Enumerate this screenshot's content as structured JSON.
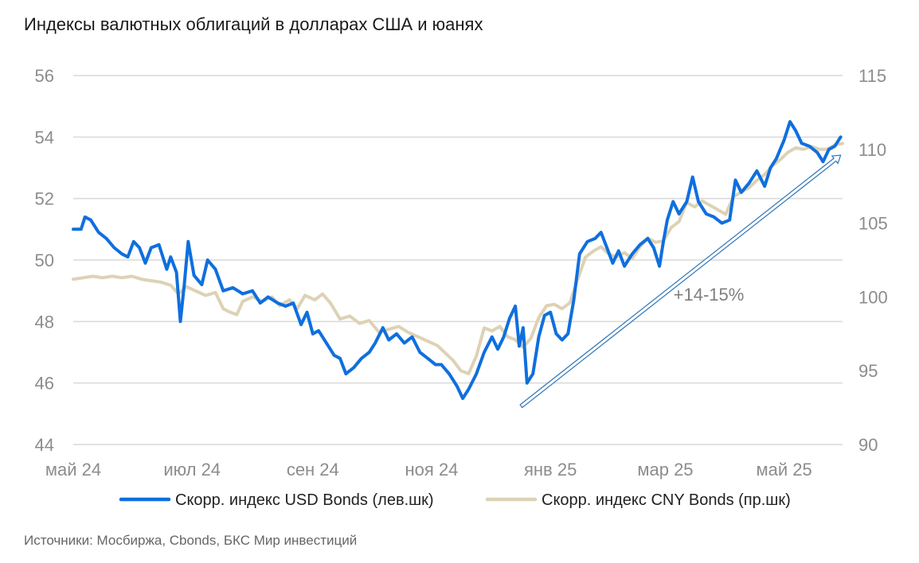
{
  "title": "Индексы валютных облигаций в долларах США и юанях",
  "source": "Источники: Мосбиржа, Cbonds, БКС Мир инвестиций",
  "chart_data": {
    "type": "line",
    "title": "Индексы валютных облигаций в долларах США и юанях",
    "x_tick_labels": [
      "май 24",
      "июл 24",
      "сен 24",
      "ноя 24",
      "янв 25",
      "мар 25",
      "май 25"
    ],
    "x_tick_dates": [
      "2024-05-01",
      "2024-07-01",
      "2024-09-01",
      "2024-11-01",
      "2025-01-01",
      "2025-03-01",
      "2025-05-01"
    ],
    "x_range": [
      "2024-05-01",
      "2025-05-31"
    ],
    "y_left": {
      "range": [
        44,
        56
      ],
      "ticks": [
        44,
        46,
        48,
        50,
        52,
        54
      ],
      "top_tick": 56
    },
    "y_right": {
      "range": [
        90,
        115
      ],
      "ticks": [
        90,
        95,
        100,
        105,
        110,
        115
      ]
    },
    "grid": true,
    "legend_position": "bottom",
    "annotation": {
      "text": "+14-15%",
      "arrow_from": [
        "2024-12-17",
        92.6
      ],
      "arrow_to": [
        "2025-05-30",
        109.6
      ],
      "axis": "right"
    },
    "series": [
      {
        "name": "Скорр. индекс USD Bonds (лев.шк)",
        "axis": "left",
        "color": "#0f6fde",
        "points": [
          [
            "2024-05-01",
            51.0
          ],
          [
            "2024-05-05",
            51.0
          ],
          [
            "2024-05-07",
            51.4
          ],
          [
            "2024-05-10",
            51.3
          ],
          [
            "2024-05-14",
            50.9
          ],
          [
            "2024-05-18",
            50.7
          ],
          [
            "2024-05-22",
            50.4
          ],
          [
            "2024-05-26",
            50.2
          ],
          [
            "2024-05-29",
            50.1
          ],
          [
            "2024-06-01",
            50.6
          ],
          [
            "2024-06-04",
            50.4
          ],
          [
            "2024-06-07",
            49.9
          ],
          [
            "2024-06-10",
            50.4
          ],
          [
            "2024-06-14",
            50.5
          ],
          [
            "2024-06-18",
            49.7
          ],
          [
            "2024-06-20",
            50.1
          ],
          [
            "2024-06-23",
            49.6
          ],
          [
            "2024-06-25",
            48.0
          ],
          [
            "2024-06-27",
            49.2
          ],
          [
            "2024-06-29",
            50.6
          ],
          [
            "2024-07-02",
            49.5
          ],
          [
            "2024-07-06",
            49.2
          ],
          [
            "2024-07-09",
            50.0
          ],
          [
            "2024-07-13",
            49.7
          ],
          [
            "2024-07-17",
            49.0
          ],
          [
            "2024-07-22",
            49.1
          ],
          [
            "2024-07-27",
            48.9
          ],
          [
            "2024-08-01",
            49.0
          ],
          [
            "2024-08-05",
            48.6
          ],
          [
            "2024-08-09",
            48.8
          ],
          [
            "2024-08-14",
            48.6
          ],
          [
            "2024-08-18",
            48.5
          ],
          [
            "2024-08-22",
            48.6
          ],
          [
            "2024-08-26",
            47.9
          ],
          [
            "2024-08-29",
            48.3
          ],
          [
            "2024-09-01",
            47.6
          ],
          [
            "2024-09-04",
            47.7
          ],
          [
            "2024-09-08",
            47.3
          ],
          [
            "2024-09-12",
            46.9
          ],
          [
            "2024-09-15",
            46.8
          ],
          [
            "2024-09-18",
            46.3
          ],
          [
            "2024-09-22",
            46.5
          ],
          [
            "2024-09-26",
            46.8
          ],
          [
            "2024-09-30",
            47.0
          ],
          [
            "2024-10-03",
            47.3
          ],
          [
            "2024-10-07",
            47.8
          ],
          [
            "2024-10-10",
            47.4
          ],
          [
            "2024-10-14",
            47.6
          ],
          [
            "2024-10-18",
            47.3
          ],
          [
            "2024-10-22",
            47.5
          ],
          [
            "2024-10-26",
            47.0
          ],
          [
            "2024-10-30",
            46.8
          ],
          [
            "2024-11-03",
            46.6
          ],
          [
            "2024-11-06",
            46.6
          ],
          [
            "2024-11-10",
            46.3
          ],
          [
            "2024-11-14",
            45.9
          ],
          [
            "2024-11-17",
            45.5
          ],
          [
            "2024-11-20",
            45.8
          ],
          [
            "2024-11-24",
            46.3
          ],
          [
            "2024-11-28",
            47.0
          ],
          [
            "2024-12-02",
            47.5
          ],
          [
            "2024-12-05",
            47.1
          ],
          [
            "2024-12-08",
            47.5
          ],
          [
            "2024-12-11",
            48.1
          ],
          [
            "2024-12-14",
            48.5
          ],
          [
            "2024-12-16",
            47.2
          ],
          [
            "2024-12-18",
            47.8
          ],
          [
            "2024-12-20",
            46.0
          ],
          [
            "2024-12-23",
            46.3
          ],
          [
            "2024-12-26",
            47.5
          ],
          [
            "2024-12-29",
            48.2
          ],
          [
            "2025-01-01",
            48.3
          ],
          [
            "2025-01-04",
            47.6
          ],
          [
            "2025-01-07",
            47.4
          ],
          [
            "2025-01-10",
            47.6
          ],
          [
            "2025-01-13",
            48.7
          ],
          [
            "2025-01-16",
            50.2
          ],
          [
            "2025-01-20",
            50.6
          ],
          [
            "2025-01-24",
            50.7
          ],
          [
            "2025-01-27",
            50.9
          ],
          [
            "2025-01-30",
            50.4
          ],
          [
            "2025-02-02",
            49.9
          ],
          [
            "2025-02-05",
            50.3
          ],
          [
            "2025-02-08",
            49.8
          ],
          [
            "2025-02-12",
            50.2
          ],
          [
            "2025-02-16",
            50.5
          ],
          [
            "2025-02-20",
            50.7
          ],
          [
            "2025-02-23",
            50.4
          ],
          [
            "2025-02-26",
            49.8
          ],
          [
            "2025-02-28",
            50.6
          ],
          [
            "2025-03-02",
            51.3
          ],
          [
            "2025-03-05",
            51.9
          ],
          [
            "2025-03-08",
            51.5
          ],
          [
            "2025-03-12",
            51.9
          ],
          [
            "2025-03-15",
            52.7
          ],
          [
            "2025-03-18",
            51.9
          ],
          [
            "2025-03-22",
            51.5
          ],
          [
            "2025-03-26",
            51.4
          ],
          [
            "2025-03-30",
            51.2
          ],
          [
            "2025-04-03",
            51.3
          ],
          [
            "2025-04-06",
            52.6
          ],
          [
            "2025-04-09",
            52.2
          ],
          [
            "2025-04-13",
            52.5
          ],
          [
            "2025-04-17",
            52.9
          ],
          [
            "2025-04-21",
            52.4
          ],
          [
            "2025-04-24",
            53.0
          ],
          [
            "2025-04-27",
            53.3
          ],
          [
            "2025-05-01",
            53.9
          ],
          [
            "2025-05-04",
            54.5
          ],
          [
            "2025-05-07",
            54.2
          ],
          [
            "2025-05-10",
            53.8
          ],
          [
            "2025-05-14",
            53.7
          ],
          [
            "2025-05-18",
            53.5
          ],
          [
            "2025-05-21",
            53.2
          ],
          [
            "2025-05-24",
            53.6
          ],
          [
            "2025-05-27",
            53.7
          ],
          [
            "2025-05-30",
            54.0
          ]
        ]
      },
      {
        "name": "Скорр. индекс CNY Bonds (пр.шк)",
        "axis": "right",
        "color": "#ddd2b5",
        "points": [
          [
            "2024-05-01",
            101.2
          ],
          [
            "2024-05-06",
            101.3
          ],
          [
            "2024-05-11",
            101.4
          ],
          [
            "2024-05-16",
            101.3
          ],
          [
            "2024-05-21",
            101.4
          ],
          [
            "2024-05-26",
            101.3
          ],
          [
            "2024-05-31",
            101.4
          ],
          [
            "2024-06-05",
            101.2
          ],
          [
            "2024-06-10",
            101.1
          ],
          [
            "2024-06-15",
            101.0
          ],
          [
            "2024-06-20",
            100.8
          ],
          [
            "2024-06-24",
            100.2
          ],
          [
            "2024-06-28",
            100.7
          ],
          [
            "2024-07-03",
            100.4
          ],
          [
            "2024-07-08",
            100.1
          ],
          [
            "2024-07-13",
            100.3
          ],
          [
            "2024-07-17",
            99.2
          ],
          [
            "2024-07-20",
            99.0
          ],
          [
            "2024-07-24",
            98.8
          ],
          [
            "2024-07-27",
            99.7
          ],
          [
            "2024-08-01",
            100.0
          ],
          [
            "2024-08-06",
            99.7
          ],
          [
            "2024-08-11",
            100.0
          ],
          [
            "2024-08-15",
            99.4
          ],
          [
            "2024-08-20",
            99.8
          ],
          [
            "2024-08-24",
            99.2
          ],
          [
            "2024-08-28",
            100.1
          ],
          [
            "2024-09-02",
            99.8
          ],
          [
            "2024-09-06",
            100.2
          ],
          [
            "2024-09-10",
            99.6
          ],
          [
            "2024-09-15",
            98.5
          ],
          [
            "2024-09-20",
            98.7
          ],
          [
            "2024-09-25",
            98.2
          ],
          [
            "2024-09-30",
            98.4
          ],
          [
            "2024-10-05",
            97.6
          ],
          [
            "2024-10-10",
            97.8
          ],
          [
            "2024-10-15",
            98.0
          ],
          [
            "2024-10-20",
            97.6
          ],
          [
            "2024-10-25",
            97.3
          ],
          [
            "2024-10-30",
            97.0
          ],
          [
            "2024-11-04",
            96.7
          ],
          [
            "2024-11-08",
            96.2
          ],
          [
            "2024-11-12",
            95.7
          ],
          [
            "2024-11-16",
            95.0
          ],
          [
            "2024-11-20",
            94.8
          ],
          [
            "2024-11-24",
            96.0
          ],
          [
            "2024-11-28",
            97.9
          ],
          [
            "2024-12-02",
            97.7
          ],
          [
            "2024-12-06",
            98.0
          ],
          [
            "2024-12-10",
            97.3
          ],
          [
            "2024-12-14",
            97.1
          ],
          [
            "2024-12-18",
            96.6
          ],
          [
            "2024-12-22",
            97.2
          ],
          [
            "2024-12-26",
            98.6
          ],
          [
            "2024-12-30",
            99.4
          ],
          [
            "2025-01-03",
            99.5
          ],
          [
            "2025-01-07",
            99.2
          ],
          [
            "2025-01-11",
            99.6
          ],
          [
            "2025-01-15",
            101.2
          ],
          [
            "2025-01-19",
            102.7
          ],
          [
            "2025-01-23",
            103.1
          ],
          [
            "2025-01-27",
            103.4
          ],
          [
            "2025-01-31",
            102.9
          ],
          [
            "2025-02-04",
            102.7
          ],
          [
            "2025-02-08",
            103.0
          ],
          [
            "2025-02-12",
            102.6
          ],
          [
            "2025-02-16",
            103.4
          ],
          [
            "2025-02-20",
            104.0
          ],
          [
            "2025-02-24",
            103.7
          ],
          [
            "2025-02-28",
            103.8
          ],
          [
            "2025-03-04",
            104.7
          ],
          [
            "2025-03-08",
            105.1
          ],
          [
            "2025-03-12",
            106.4
          ],
          [
            "2025-03-16",
            106.1
          ],
          [
            "2025-03-20",
            106.5
          ],
          [
            "2025-03-24",
            106.2
          ],
          [
            "2025-03-28",
            105.9
          ],
          [
            "2025-04-01",
            105.6
          ],
          [
            "2025-04-05",
            106.8
          ],
          [
            "2025-04-09",
            107.1
          ],
          [
            "2025-04-13",
            107.4
          ],
          [
            "2025-04-17",
            107.9
          ],
          [
            "2025-04-21",
            108.3
          ],
          [
            "2025-04-25",
            108.9
          ],
          [
            "2025-04-29",
            109.3
          ],
          [
            "2025-05-03",
            109.8
          ],
          [
            "2025-05-07",
            110.1
          ],
          [
            "2025-05-11",
            110.0
          ],
          [
            "2025-05-15",
            110.2
          ],
          [
            "2025-05-19",
            110.0
          ],
          [
            "2025-05-23",
            110.0
          ],
          [
            "2025-05-27",
            110.3
          ],
          [
            "2025-05-31",
            110.4
          ]
        ]
      }
    ]
  }
}
